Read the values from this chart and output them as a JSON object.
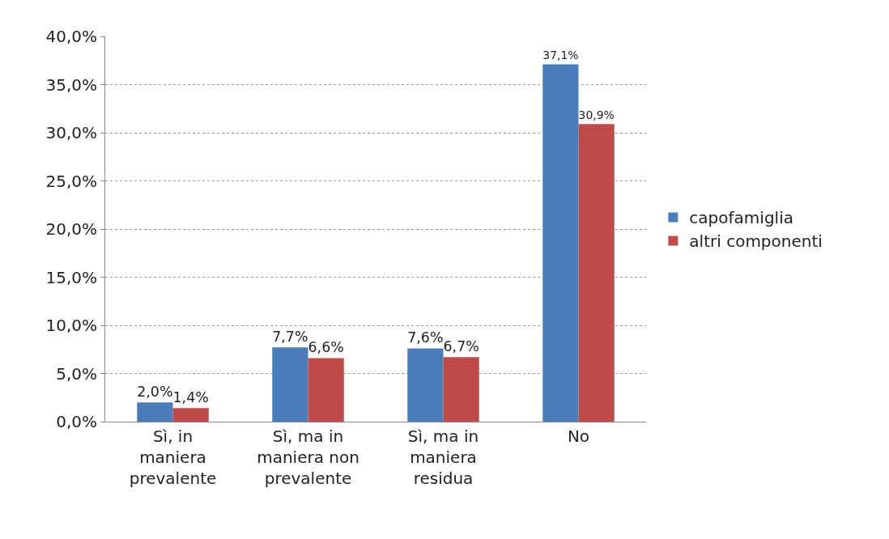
{
  "chart_data": {
    "type": "bar",
    "categories": [
      "Sì, in maniera prevalente",
      "Sì, ma in maniera non prevalente",
      "Sì, ma in maniera residua",
      "No"
    ],
    "series": [
      {
        "name": "capofamiglia",
        "color": "#4a7ebb",
        "values": [
          2.0,
          7.7,
          7.6,
          37.1
        ],
        "value_labels": [
          "2,0%",
          "7,7%",
          "7,6%",
          "37,1%"
        ]
      },
      {
        "name": "altri componenti",
        "color": "#be4b48",
        "values": [
          1.4,
          6.6,
          6.7,
          30.9
        ],
        "value_labels": [
          "1,4%",
          "6,6%",
          "6,7%",
          "30,9%"
        ]
      }
    ],
    "ylim": [
      0,
      40
    ],
    "yticks": [
      {
        "value": 0,
        "label": "0,0%"
      },
      {
        "value": 5,
        "label": "5,0%"
      },
      {
        "value": 10,
        "label": "10,0%"
      },
      {
        "value": 15,
        "label": "15,0%"
      },
      {
        "value": 20,
        "label": "20,0%"
      },
      {
        "value": 25,
        "label": "25,0%"
      },
      {
        "value": 30,
        "label": "30,0%"
      },
      {
        "value": 35,
        "label": "35,0%"
      },
      {
        "value": 40,
        "label": "40,0%"
      }
    ],
    "grid": "y",
    "legend": "right"
  }
}
